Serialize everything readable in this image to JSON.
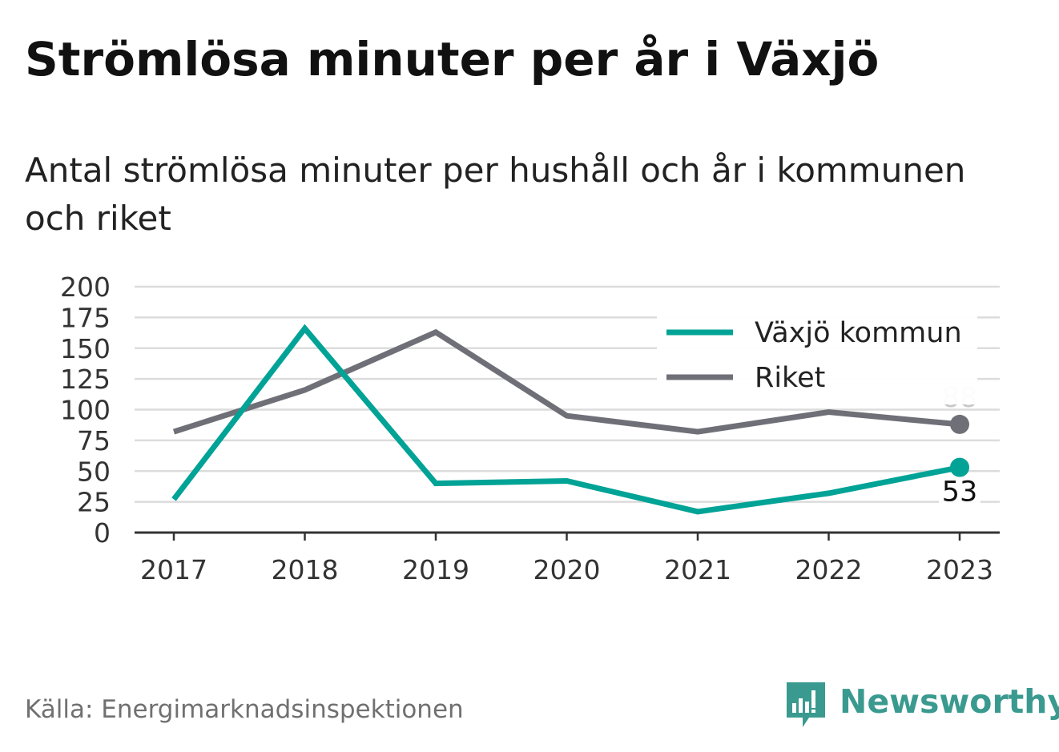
{
  "title": "Strömlösa minuter per år i Växjö",
  "subtitle": "Antal strömlösa minuter per hushåll och år i kommunen och riket",
  "source": "Källa: Energimarknadsinspektionen",
  "brand": "Newsworthy",
  "brand_icon": "chart-bubble-icon",
  "colors": {
    "vaxjo": "#00a396",
    "riket": "#6f6f78",
    "grid": "#dcdcdc",
    "axis": "#333333",
    "riket_label": "#c8c8c8",
    "brand": "#3a9a8f"
  },
  "chart_data": {
    "type": "line",
    "x": [
      "2017",
      "2018",
      "2019",
      "2020",
      "2021",
      "2022",
      "2023"
    ],
    "ylim": [
      0,
      200
    ],
    "yticks": [
      "0",
      "25",
      "50",
      "75",
      "100",
      "125",
      "150",
      "175",
      "200"
    ],
    "grid": true,
    "legend_position": "top-right",
    "series": [
      {
        "name": "Växjö kommun",
        "values": [
          27,
          166,
          40,
          42,
          17,
          32,
          53
        ],
        "end_label": "53"
      },
      {
        "name": "Riket",
        "values": [
          82,
          116,
          163,
          95,
          82,
          98,
          88
        ],
        "end_label": "88"
      }
    ]
  }
}
